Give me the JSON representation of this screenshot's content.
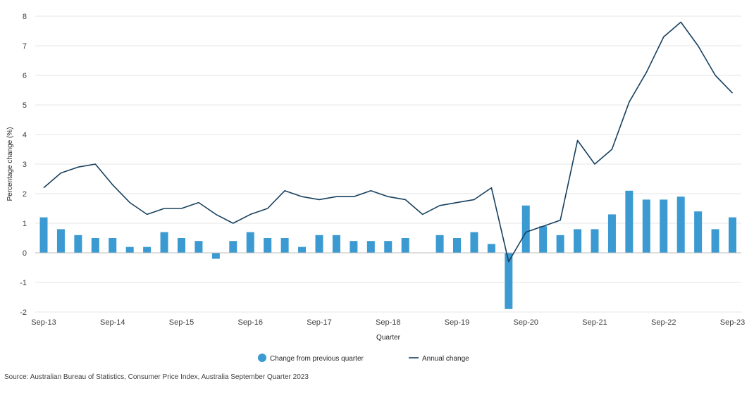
{
  "chart_data": {
    "type": "bar",
    "xlabel": "Quarter",
    "ylabel": "Percentage change (%)",
    "ylim": [
      -2,
      8
    ],
    "yticks": [
      -2,
      -1,
      0,
      1,
      2,
      3,
      4,
      5,
      6,
      7,
      8
    ],
    "grid": true,
    "legend_position": "bottom",
    "categories": [
      "Sep-13",
      "Dec-13",
      "Mar-14",
      "Jun-14",
      "Sep-14",
      "Dec-14",
      "Mar-15",
      "Jun-15",
      "Sep-15",
      "Dec-15",
      "Mar-16",
      "Jun-16",
      "Sep-16",
      "Dec-16",
      "Mar-17",
      "Jun-17",
      "Sep-17",
      "Dec-17",
      "Mar-18",
      "Jun-18",
      "Sep-18",
      "Dec-18",
      "Mar-19",
      "Jun-19",
      "Sep-19",
      "Dec-19",
      "Mar-20",
      "Jun-20",
      "Sep-20",
      "Dec-20",
      "Mar-21",
      "Jun-21",
      "Sep-21",
      "Dec-21",
      "Mar-22",
      "Jun-22",
      "Sep-22",
      "Dec-22",
      "Mar-23",
      "Jun-23",
      "Sep-23"
    ],
    "tick_labels": [
      "Sep-13",
      "Sep-14",
      "Sep-15",
      "Sep-16",
      "Sep-17",
      "Sep-18",
      "Sep-19",
      "Sep-20",
      "Sep-21",
      "Sep-22",
      "Sep-23"
    ],
    "series": [
      {
        "name": "Change from previous quarter",
        "type": "bar",
        "color": "#3a9ad1",
        "values": [
          1.2,
          0.8,
          0.6,
          0.5,
          0.5,
          0.2,
          0.2,
          0.7,
          0.5,
          0.4,
          -0.2,
          0.4,
          0.7,
          0.5,
          0.5,
          0.2,
          0.6,
          0.6,
          0.4,
          0.4,
          0.4,
          0.5,
          0.0,
          0.6,
          0.5,
          0.7,
          0.3,
          -1.9,
          1.6,
          0.9,
          0.6,
          0.8,
          0.8,
          1.3,
          2.1,
          1.8,
          1.8,
          1.9,
          1.4,
          0.8,
          1.2
        ]
      },
      {
        "name": "Annual change",
        "type": "line",
        "color": "#17405e",
        "values": [
          2.2,
          2.7,
          2.9,
          3.0,
          2.3,
          1.7,
          1.3,
          1.5,
          1.5,
          1.7,
          1.3,
          1.0,
          1.3,
          1.5,
          2.1,
          1.9,
          1.8,
          1.9,
          1.9,
          2.1,
          1.9,
          1.8,
          1.3,
          1.6,
          1.7,
          1.8,
          2.2,
          -0.3,
          0.7,
          0.9,
          1.1,
          3.8,
          3.0,
          3.5,
          5.1,
          6.1,
          7.3,
          7.8,
          7.0,
          6.0,
          5.4
        ]
      }
    ]
  },
  "source": "Source: Australian Bureau of Statistics, Consumer Price Index, Australia September Quarter 2023"
}
